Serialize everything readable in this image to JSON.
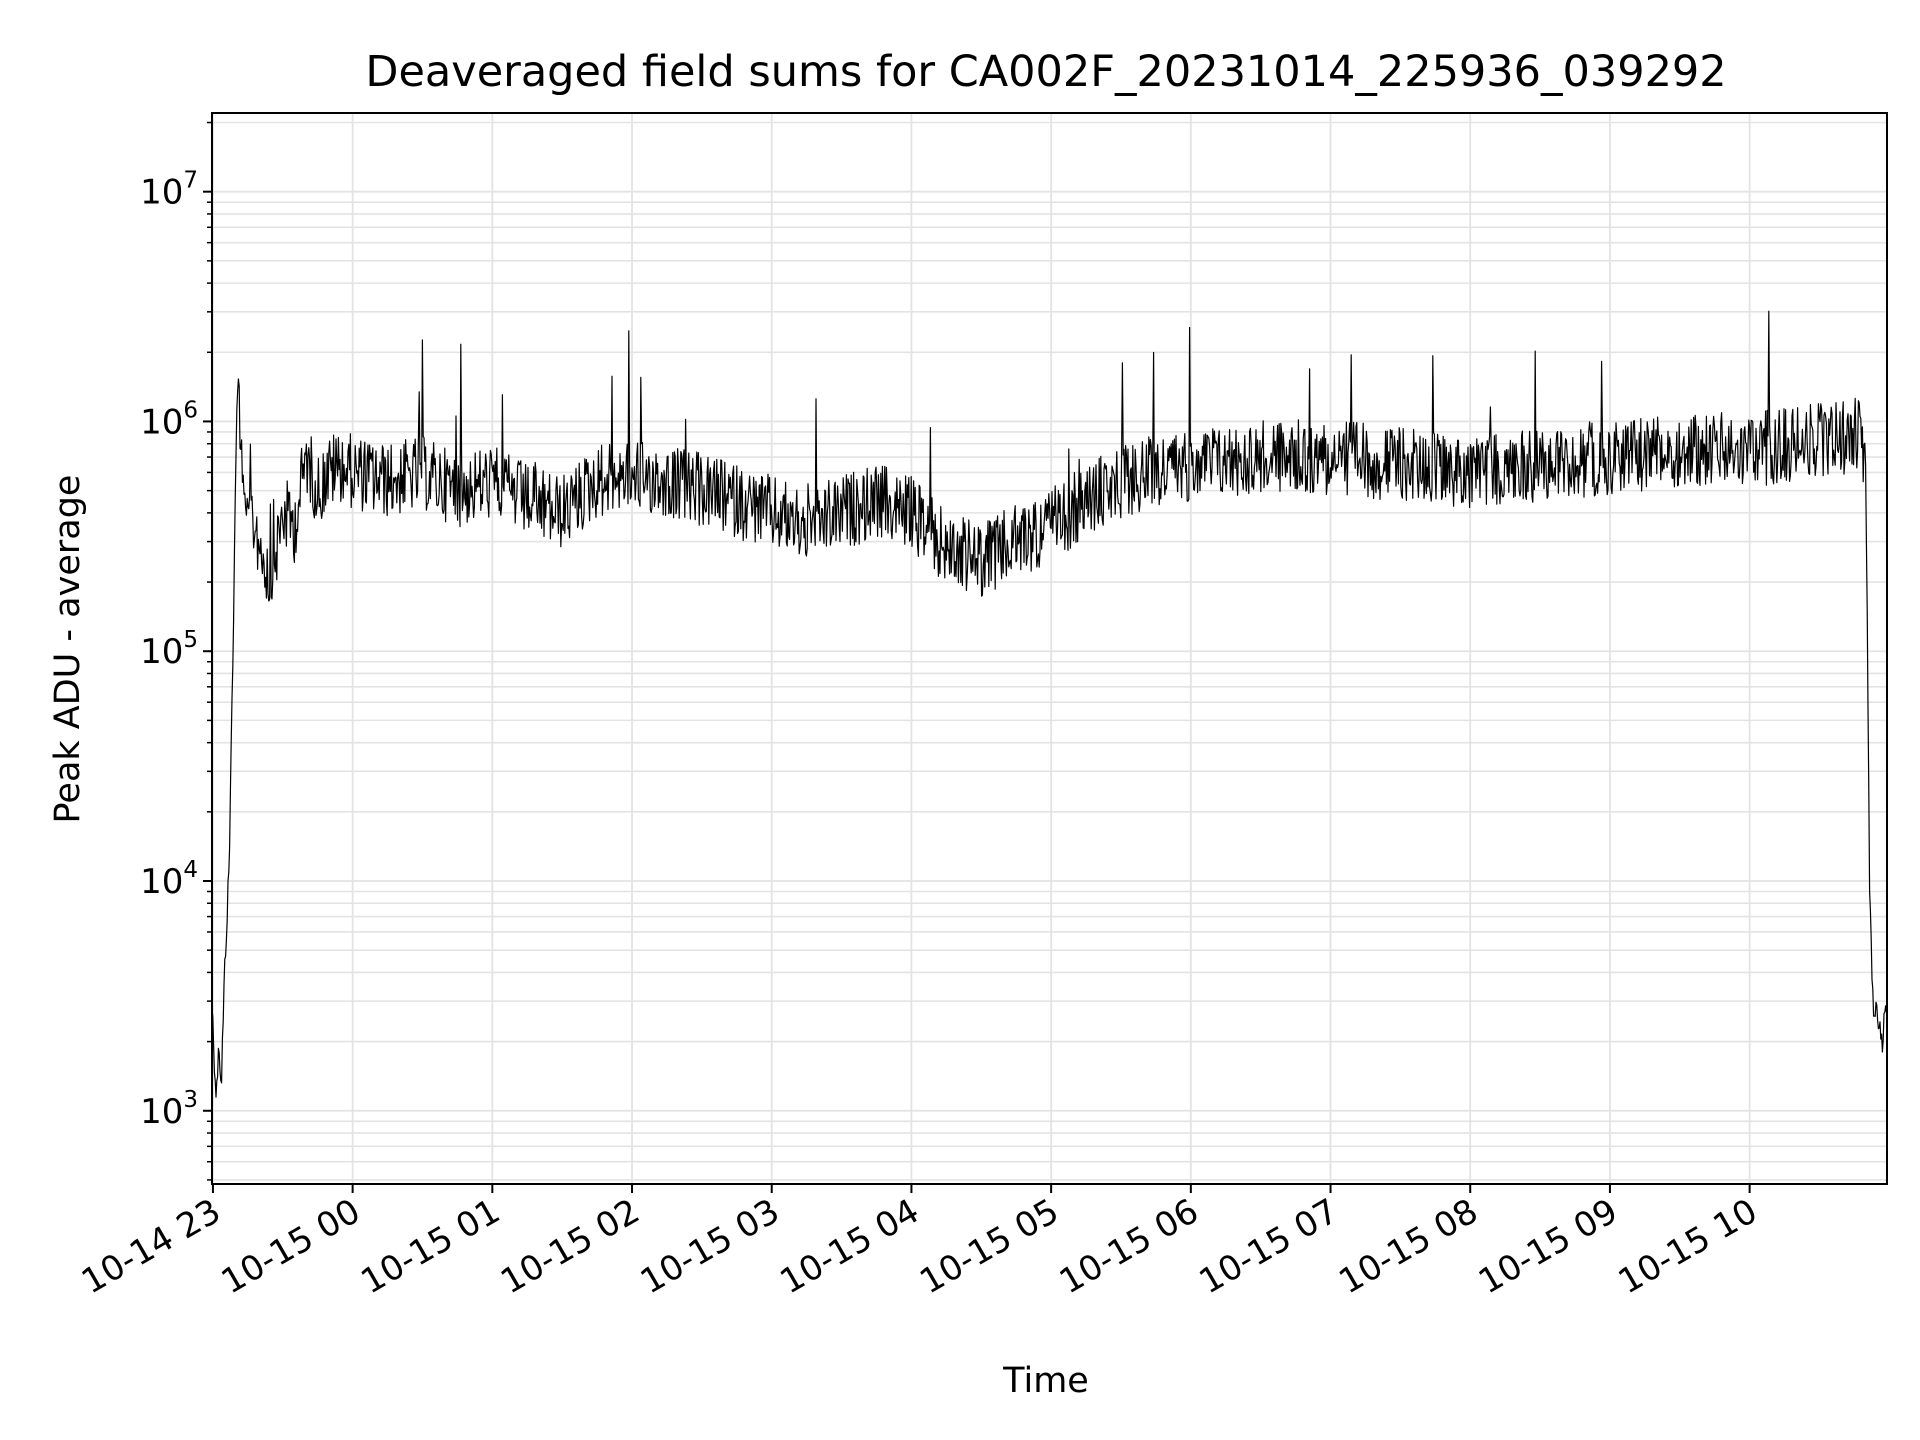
{
  "chart_data": {
    "type": "line",
    "title": "Deaveraged field sums for CA002F_20231014_225936_039292",
    "xlabel": "Time",
    "ylabel": "Peak ADU - average",
    "yscale": "log",
    "grid": true,
    "legend": "none",
    "line_color": "#000000",
    "grid_color": "#e3e3e3",
    "x_range": [
      "2023-10-14 22:59:36",
      "2023-10-15 10:59:00"
    ],
    "ylim": [
      480,
      22000000
    ],
    "x_ticks": [
      {
        "time": "2023-10-14 23:00",
        "label": "10-14 23"
      },
      {
        "time": "2023-10-15 00:00",
        "label": "10-15 00"
      },
      {
        "time": "2023-10-15 01:00",
        "label": "10-15 01"
      },
      {
        "time": "2023-10-15 02:00",
        "label": "10-15 02"
      },
      {
        "time": "2023-10-15 03:00",
        "label": "10-15 03"
      },
      {
        "time": "2023-10-15 04:00",
        "label": "10-15 04"
      },
      {
        "time": "2023-10-15 05:00",
        "label": "10-15 05"
      },
      {
        "time": "2023-10-15 06:00",
        "label": "10-15 06"
      },
      {
        "time": "2023-10-15 07:00",
        "label": "10-15 07"
      },
      {
        "time": "2023-10-15 08:00",
        "label": "10-15 08"
      },
      {
        "time": "2023-10-15 09:00",
        "label": "10-15 09"
      },
      {
        "time": "2023-10-15 10:00",
        "label": "10-15 10"
      }
    ],
    "y_ticks": [
      {
        "value": 1000,
        "base": "10",
        "exp": "3"
      },
      {
        "value": 10000,
        "base": "10",
        "exp": "4"
      },
      {
        "value": 100000,
        "base": "10",
        "exp": "5"
      },
      {
        "value": 1000000,
        "base": "10",
        "exp": "6"
      },
      {
        "value": 10000000,
        "base": "10",
        "exp": "7"
      }
    ],
    "series": [
      {
        "x": [
          "2023-10-14 22:59:36",
          "2023-10-14 23:00:30",
          "2023-10-14 23:01:30",
          "2023-10-14 23:02:30",
          "2023-10-14 23:03:30",
          "2023-10-14 23:05:00",
          "2023-10-14 23:07:00",
          "2023-10-14 23:09:00",
          "2023-10-14 23:10:00",
          "2023-10-14 23:11:00",
          "2023-10-14 23:12:00",
          "2023-10-14 23:13:00",
          "2023-10-14 23:15:00",
          "2023-10-14 23:17:00",
          "2023-10-14 23:20:00",
          "2023-10-14 23:25:00",
          "2023-10-14 23:30:00",
          "2023-10-14 23:35:00",
          "2023-10-14 23:40:00",
          "2023-10-14 23:45:00",
          "2023-10-14 23:50:00",
          "2023-10-14 23:55:00",
          "2023-10-15 00:00:00",
          "2023-10-15 00:15:00",
          "2023-10-15 00:30:00",
          "2023-10-15 00:45:00",
          "2023-10-15 01:00:00",
          "2023-10-15 01:15:00",
          "2023-10-15 01:30:00",
          "2023-10-15 01:45:00",
          "2023-10-15 02:00:00",
          "2023-10-15 02:15:00",
          "2023-10-15 02:30:00",
          "2023-10-15 02:45:00",
          "2023-10-15 03:00:00",
          "2023-10-15 03:15:00",
          "2023-10-15 03:30:00",
          "2023-10-15 03:45:00",
          "2023-10-15 04:00:00",
          "2023-10-15 04:15:00",
          "2023-10-15 04:30:00",
          "2023-10-15 04:45:00",
          "2023-10-15 05:00:00",
          "2023-10-15 05:15:00",
          "2023-10-15 05:30:00",
          "2023-10-15 05:45:00",
          "2023-10-15 06:00:00",
          "2023-10-15 06:30:00",
          "2023-10-15 07:00:00",
          "2023-10-15 07:30:00",
          "2023-10-15 08:00:00",
          "2023-10-15 08:30:00",
          "2023-10-15 09:00:00",
          "2023-10-15 09:30:00",
          "2023-10-15 10:00:00",
          "2023-10-15 10:20:00",
          "2023-10-15 10:40:00",
          "2023-10-15 10:48:00",
          "2023-10-15 10:50:00",
          "2023-10-15 10:51:30",
          "2023-10-15 10:53:00",
          "2023-10-15 10:55:00",
          "2023-10-15 10:57:00",
          "2023-10-15 10:59:00"
        ],
        "y": [
          2900,
          1800,
          1100,
          2200,
          1200,
          4000,
          12000,
          180000,
          900000,
          1500000,
          900000,
          600000,
          400000,
          380000,
          300000,
          200000,
          400000,
          350000,
          700000,
          500000,
          600000,
          650000,
          600000,
          550000,
          600000,
          500000,
          550000,
          450000,
          400000,
          550000,
          600000,
          550000,
          500000,
          450000,
          400000,
          350000,
          400000,
          450000,
          400000,
          280000,
          250000,
          300000,
          350000,
          450000,
          550000,
          600000,
          650000,
          700000,
          700000,
          650000,
          600000,
          650000,
          700000,
          750000,
          750000,
          800000,
          850000,
          900000,
          500000,
          10000,
          3000,
          2500,
          2000,
          3000
        ]
      }
    ]
  }
}
